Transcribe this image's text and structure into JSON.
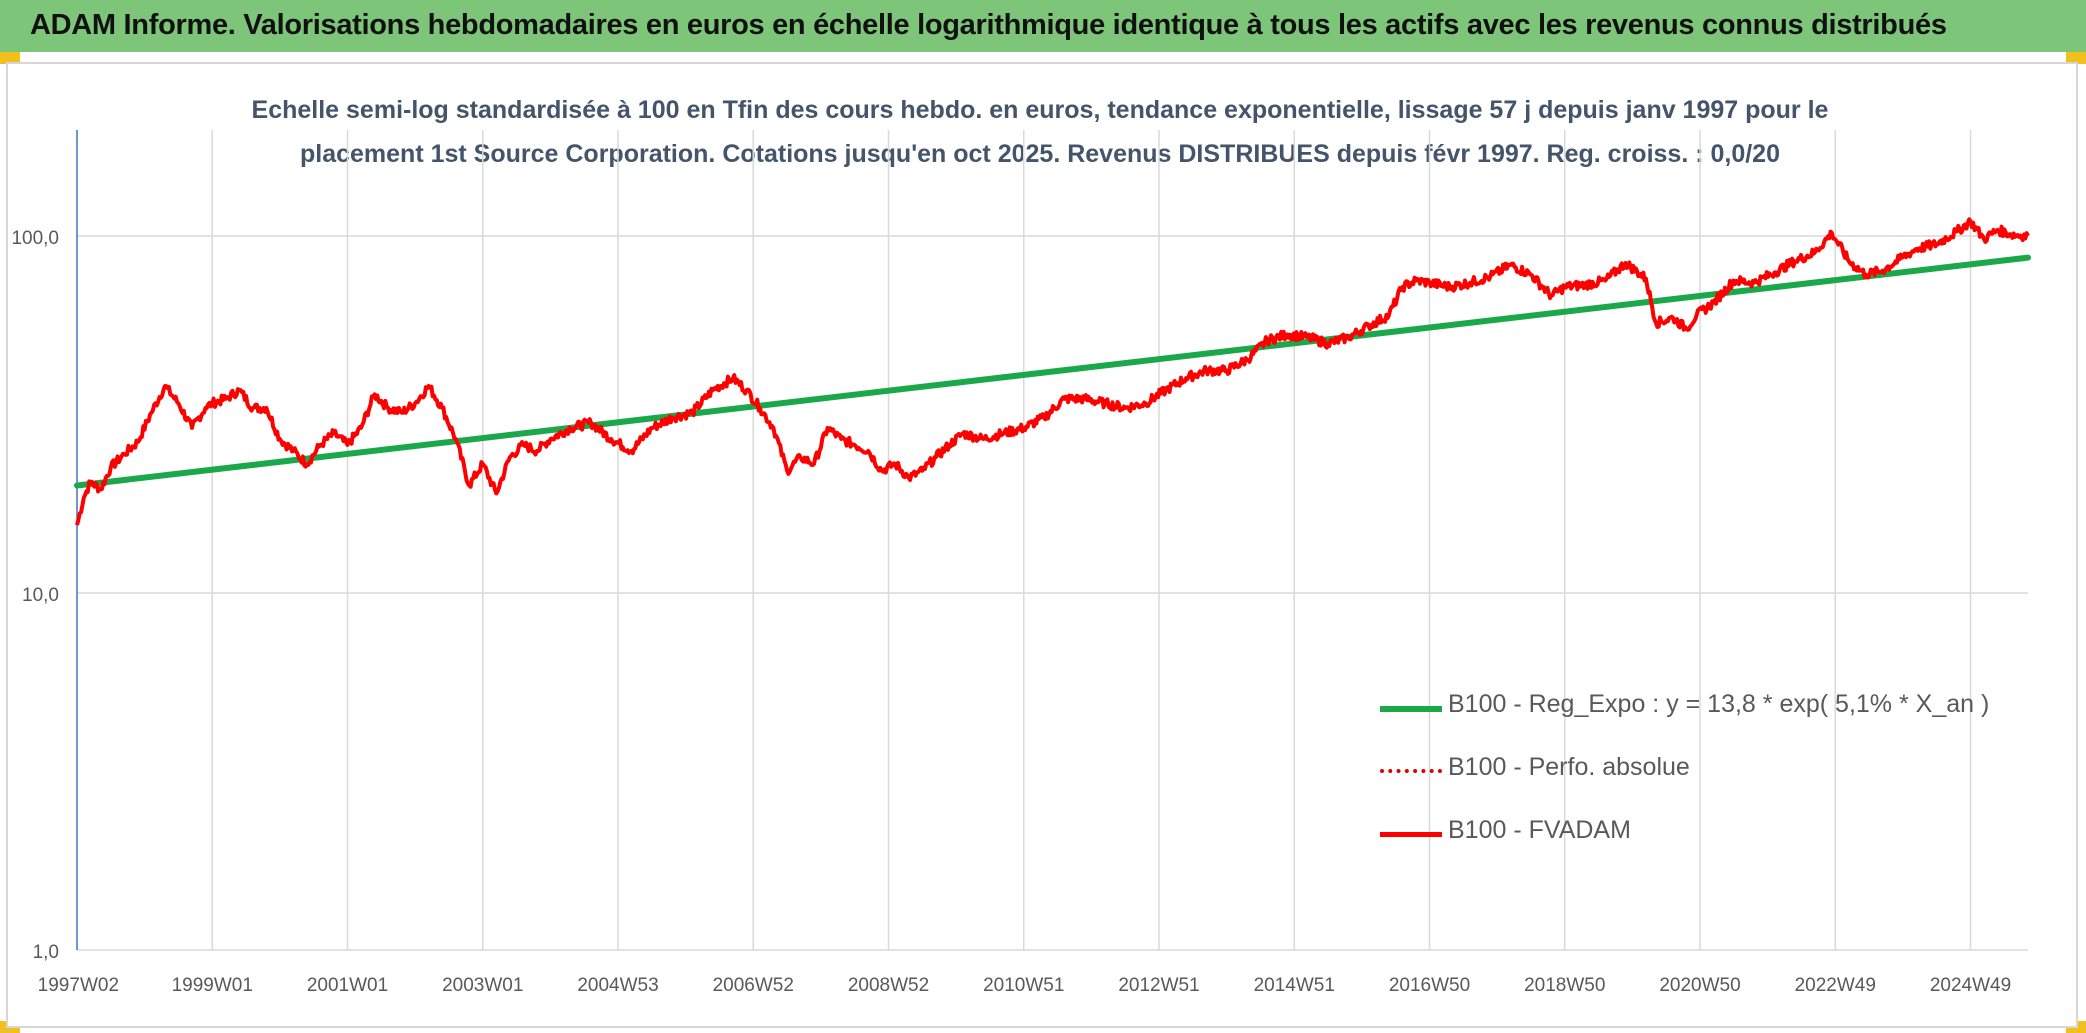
{
  "header": {
    "title": "ADAM Informe. Valorisations hebdomadaires en euros en échelle logarithmique identique à tous les actifs avec les revenus connus distribués"
  },
  "colors": {
    "banner": "#7dc679",
    "trend": "#1aa84b",
    "fvadam": "#ff0000",
    "perfo": "#e00000",
    "grid": "#d9d9d9",
    "axis": "#4472c4",
    "corner": "#f2c01e"
  },
  "chart_data": {
    "type": "line",
    "title_line1": "Echelle semi-log standardisée à 100 en Tfin des cours hebdo. en euros, tendance exponentielle, lissage 57 j depuis janv 1997 pour le",
    "title_line2": "placement 1st Source Corporation. Cotations jusqu'en oct 2025. Revenus DISTRIBUES depuis févr 1997. Reg. croiss. : 0,0/20",
    "y_scale": "log",
    "ylim": [
      1,
      200
    ],
    "xlim": [
      1997.0,
      2025.85
    ],
    "y_ticks": [
      {
        "value": 1,
        "label": "1,0"
      },
      {
        "value": 10,
        "label": "10,0"
      },
      {
        "value": 100,
        "label": "100,0"
      }
    ],
    "x_ticks": [
      {
        "x": 1997.02,
        "label": "1997W02"
      },
      {
        "x": 1999.0,
        "label": "1999W01"
      },
      {
        "x": 2001.0,
        "label": "2001W01"
      },
      {
        "x": 2003.0,
        "label": "2003W01"
      },
      {
        "x": 2005.0,
        "label": "2004W53"
      },
      {
        "x": 2007.0,
        "label": "2006W52"
      },
      {
        "x": 2009.0,
        "label": "2008W52"
      },
      {
        "x": 2011.0,
        "label": "2010W51"
      },
      {
        "x": 2013.0,
        "label": "2012W51"
      },
      {
        "x": 2015.0,
        "label": "2014W51"
      },
      {
        "x": 2017.0,
        "label": "2016W50"
      },
      {
        "x": 2019.0,
        "label": "2018W50"
      },
      {
        "x": 2021.0,
        "label": "2020W50"
      },
      {
        "x": 2023.0,
        "label": "2022W49"
      },
      {
        "x": 2025.0,
        "label": "2024W49"
      }
    ],
    "grid": true,
    "legend_position": "lower-right",
    "series": [
      {
        "name": "B100 - Reg_Expo : y = 13,8 * exp( 5,1% *  X_an )",
        "style": "solid-thick",
        "x": [
          1997.0,
          2025.85
        ],
        "y": [
          20.0,
          87.0
        ]
      },
      {
        "name": "B100 - Perfo. absolue",
        "style": "dotted",
        "x": [],
        "y": []
      },
      {
        "name": "B100 - FVADAM",
        "style": "solid",
        "x": [
          1997.0,
          1997.1,
          1997.2,
          1997.35,
          1997.5,
          1997.7,
          1997.9,
          1998.1,
          1998.3,
          1998.5,
          1998.7,
          1998.9,
          1999.0,
          1999.2,
          1999.4,
          1999.6,
          1999.8,
          2000.0,
          2000.2,
          2000.4,
          2000.6,
          2000.8,
          2001.0,
          2001.2,
          2001.4,
          2001.6,
          2001.8,
          2002.0,
          2002.2,
          2002.4,
          2002.6,
          2002.8,
          2003.0,
          2003.2,
          2003.4,
          2003.6,
          2003.8,
          2004.0,
          2004.3,
          2004.6,
          2004.9,
          2005.2,
          2005.5,
          2005.8,
          2006.1,
          2006.4,
          2006.7,
          2006.9,
          2007.1,
          2007.3,
          2007.5,
          2007.7,
          2007.9,
          2008.1,
          2008.3,
          2008.5,
          2008.7,
          2008.9,
          2009.1,
          2009.3,
          2009.5,
          2009.7,
          2009.9,
          2010.1,
          2010.4,
          2010.7,
          2011.0,
          2011.3,
          2011.6,
          2011.9,
          2012.2,
          2012.5,
          2012.8,
          2013.1,
          2013.4,
          2013.7,
          2014.0,
          2014.3,
          2014.6,
          2014.9,
          2015.2,
          2015.5,
          2015.8,
          2016.1,
          2016.4,
          2016.6,
          2016.8,
          2017.0,
          2017.3,
          2017.6,
          2017.9,
          2018.2,
          2018.5,
          2018.8,
          2019.0,
          2019.3,
          2019.6,
          2019.9,
          2020.2,
          2020.35,
          2020.6,
          2020.8,
          2020.95,
          2021.2,
          2021.5,
          2021.8,
          2022.1,
          2022.4,
          2022.7,
          2022.95,
          2023.2,
          2023.45,
          2023.7,
          2023.95,
          2024.2,
          2024.5,
          2024.8,
          2025.0,
          2025.2,
          2025.4,
          2025.6,
          2025.85
        ],
        "y": [
          15.5,
          18.5,
          20.5,
          19.5,
          22.5,
          24.5,
          26.5,
          32.0,
          38.0,
          34.0,
          29.0,
          33.0,
          34.0,
          35.0,
          37.0,
          33.0,
          33.0,
          27.0,
          25.0,
          23.0,
          26.0,
          28.0,
          26.0,
          29.0,
          36.0,
          33.0,
          32.0,
          34.0,
          38.0,
          33.0,
          27.0,
          20.0,
          23.0,
          19.0,
          24.0,
          26.0,
          25.0,
          27.0,
          29.0,
          30.0,
          27.0,
          25.0,
          29.0,
          31.0,
          32.0,
          37.0,
          40.0,
          37.0,
          33.0,
          29.0,
          22.0,
          24.0,
          23.0,
          29.0,
          27.0,
          26.0,
          25.0,
          22.0,
          23.0,
          21.0,
          22.0,
          24.0,
          26.0,
          28.0,
          27.0,
          28.0,
          29.0,
          31.0,
          35.0,
          35.0,
          34.0,
          33.0,
          34.0,
          37.0,
          40.0,
          42.0,
          42.0,
          45.0,
          51.0,
          53.0,
          52.0,
          50.0,
          52.0,
          56.0,
          60.0,
          72.0,
          75.0,
          74.0,
          72.0,
          74.0,
          77.0,
          83.0,
          78.0,
          68.0,
          72.0,
          73.0,
          75.0,
          84.0,
          76.0,
          57.0,
          59.0,
          55.0,
          60.0,
          65.0,
          75.0,
          74.0,
          79.0,
          85.0,
          90.0,
          102.0,
          85.0,
          78.0,
          80.0,
          86.0,
          92.0,
          95.0,
          103.0,
          110.0,
          98.0,
          104.0,
          101.0,
          100.0
        ]
      }
    ]
  }
}
